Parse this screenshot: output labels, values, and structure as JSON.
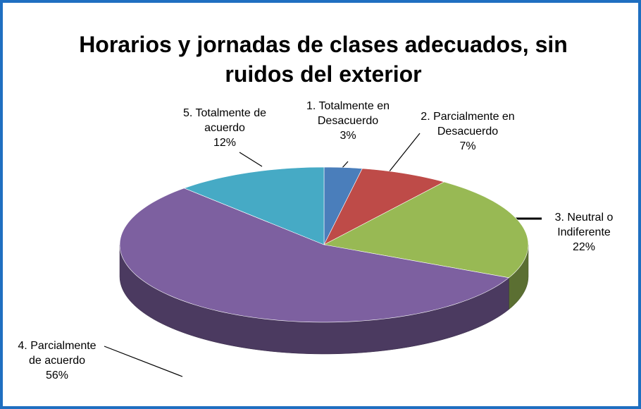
{
  "chart_data": {
    "type": "pie3d",
    "title": "Horarios y jornadas de clases adecuados, sin ruidos del exterior",
    "categories": [
      "1. Totalmente en Desacuerdo",
      "2. Parcialmente en Desacuerdo",
      "3. Neutral o Indiferente",
      "4. Parcialmente de acuerdo",
      "5. Totalmente de acuerdo"
    ],
    "values": [
      3,
      7,
      22,
      56,
      12
    ],
    "value_labels": [
      "3%",
      "7%",
      "22%",
      "56%",
      "12%"
    ],
    "colors": [
      "#4a7ebb",
      "#be4b48",
      "#98b954",
      "#7d60a0",
      "#46aac5"
    ]
  }
}
